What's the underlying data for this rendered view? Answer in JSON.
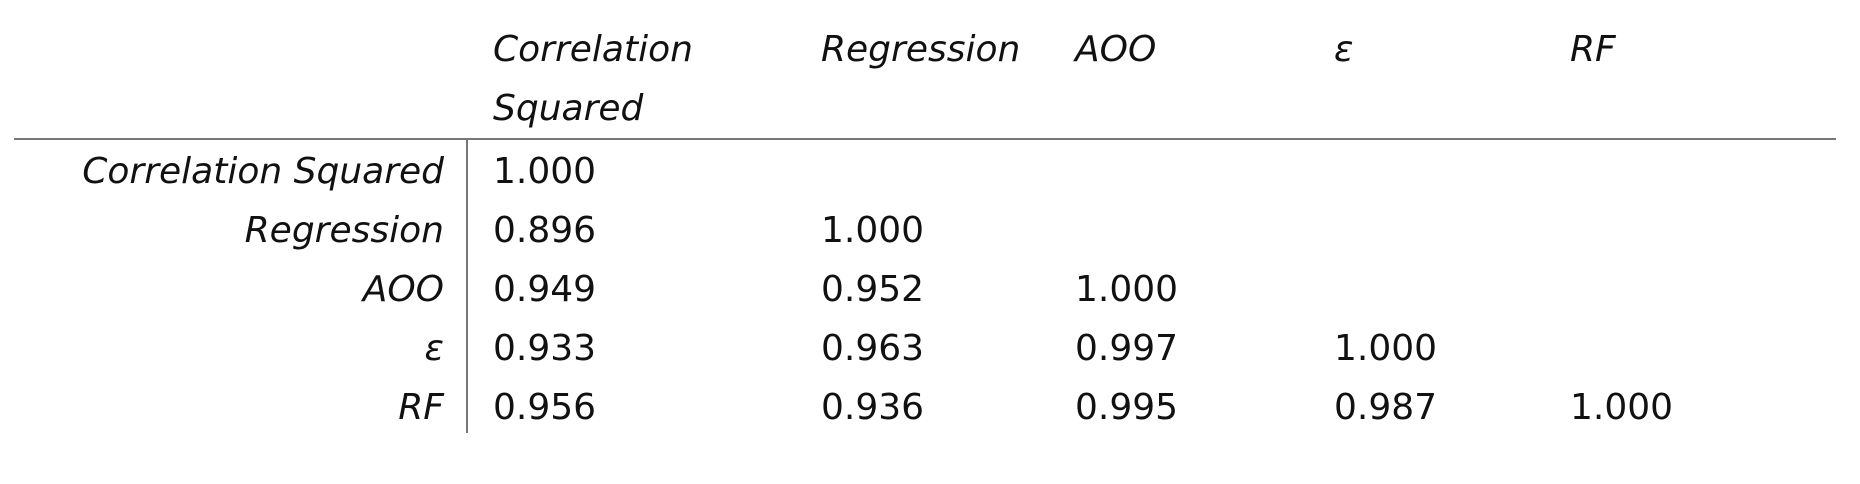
{
  "table": {
    "headers": [
      "Correlation Squared",
      "Regression",
      "AOO",
      "ε",
      "RF"
    ],
    "rows": [
      {
        "label": "Correlation Squared",
        "values": [
          "1.000"
        ]
      },
      {
        "label": "Regression",
        "values": [
          "0.896",
          "1.000"
        ]
      },
      {
        "label": "AOO",
        "values": [
          "0.949",
          "0.952",
          "1.000"
        ]
      },
      {
        "label": "ε",
        "values": [
          "0.933",
          "0.963",
          "0.997",
          "1.000"
        ]
      },
      {
        "label": "RF",
        "values": [
          "0.956",
          "0.936",
          "0.995",
          "0.987",
          "1.000"
        ]
      }
    ]
  }
}
